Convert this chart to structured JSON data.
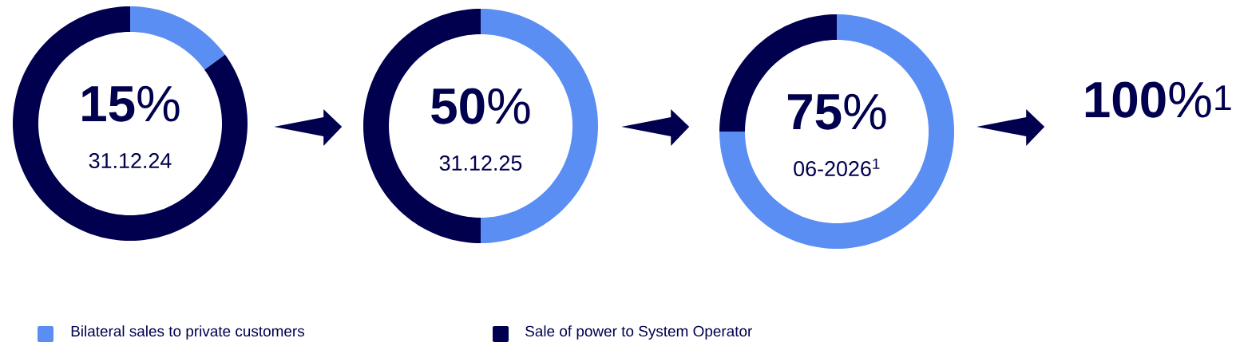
{
  "chart_data": [
    {
      "type": "donut",
      "title": "**15**%",
      "subtitle": "31.12.24",
      "categories": [
        "Bilateral sales to private customers",
        "Sale of power to System Operator"
      ],
      "values": [
        15,
        85
      ],
      "colors": [
        "#5b8ef2",
        "#00004f"
      ],
      "legend": "bottom"
    },
    {
      "type": "donut",
      "title": "**50**%",
      "subtitle": "31.12.25",
      "categories": [
        null,
        null
      ],
      "values": [
        50,
        50
      ],
      "colors": [
        "#5b8ef2",
        "#00004f"
      ]
    },
    {
      "type": "donut",
      "title": "**75**%",
      "subtitle": "06-2026$^{1}$",
      "categories": [
        null,
        null
      ],
      "values": [
        75,
        25
      ],
      "colors": [
        "#5b8ef2",
        "#00004f"
      ]
    },
    {
      "type": "other",
      "title": "**100**%$^{1}$"
    }
  ]
}
